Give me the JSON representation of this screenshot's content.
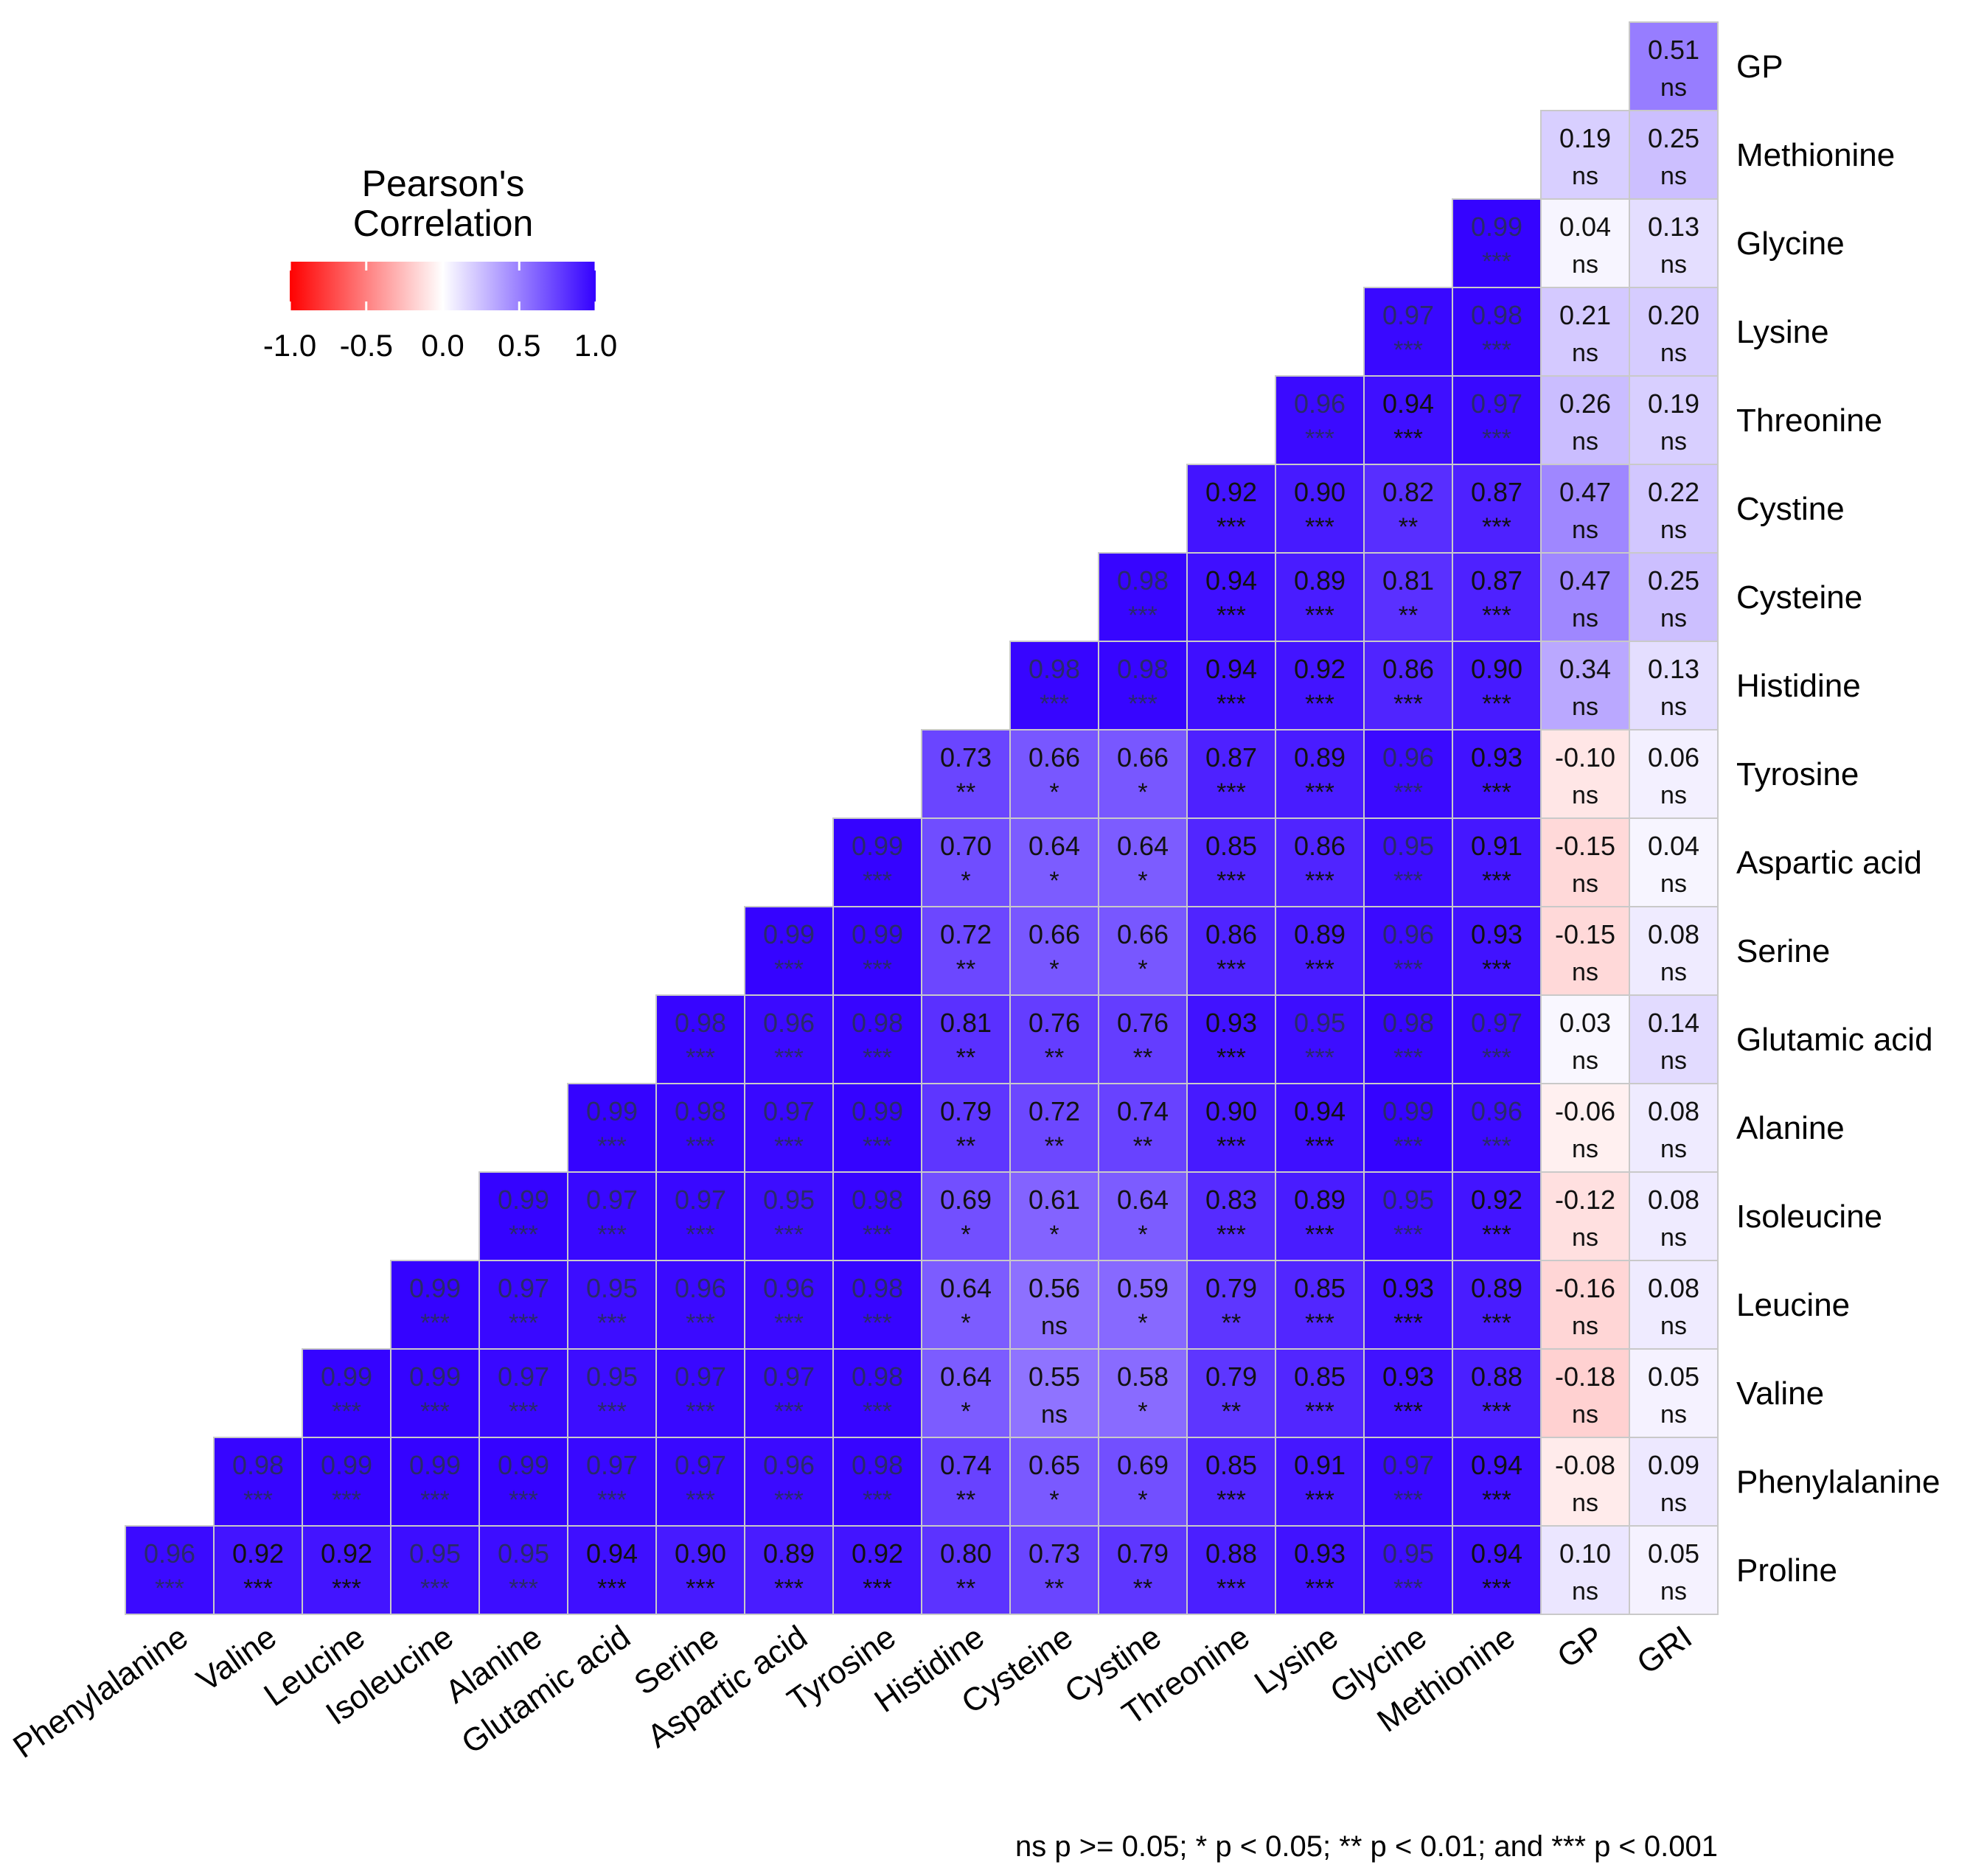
{
  "chart_data": {
    "type": "heatmap",
    "legend": {
      "title_line1": "Pearson's",
      "title_line2": "Correlation",
      "ticks": [
        "-1.0",
        "-0.5",
        "0.0",
        "0.5",
        "1.0"
      ],
      "low_color": "#ff0000",
      "mid_color": "#ffffff",
      "high_color": "#3300ff",
      "placement": "top-left"
    },
    "footnote": "ns p >= 0.05; * p < 0.05; ** p < 0.01; and *** p < 0.001",
    "x_labels": [
      "Phenylalanine",
      "Valine",
      "Leucine",
      "Isoleucine",
      "Alanine",
      "Glutamic acid",
      "Serine",
      "Aspartic acid",
      "Tyrosine",
      "Histidine",
      "Cysteine",
      "Cystine",
      "Threonine",
      "Lysine",
      "Glycine",
      "Methionine",
      "GP",
      "GRI"
    ],
    "y_labels": [
      "GP",
      "Methionine",
      "Glycine",
      "Lysine",
      "Threonine",
      "Cystine",
      "Cysteine",
      "Histidine",
      "Tyrosine",
      "Aspartic acid",
      "Serine",
      "Glutamic acid",
      "Alanine",
      "Isoleucine",
      "Leucine",
      "Valine",
      "Phenylalanine",
      "Proline"
    ],
    "rows": [
      {
        "label": "GP",
        "cells": [
          {
            "x": "GRI",
            "v": "0.51",
            "s": "ns"
          }
        ]
      },
      {
        "label": "Methionine",
        "cells": [
          {
            "x": "GP",
            "v": "0.19",
            "s": "ns"
          },
          {
            "x": "GRI",
            "v": "0.25",
            "s": "ns"
          }
        ]
      },
      {
        "label": "Glycine",
        "cells": [
          {
            "x": "Methionine",
            "v": "0.99",
            "s": "***"
          },
          {
            "x": "GP",
            "v": "0.04",
            "s": "ns"
          },
          {
            "x": "GRI",
            "v": "0.13",
            "s": "ns"
          }
        ]
      },
      {
        "label": "Lysine",
        "cells": [
          {
            "x": "Glycine",
            "v": "0.97",
            "s": "***"
          },
          {
            "x": "Methionine",
            "v": "0.98",
            "s": "***"
          },
          {
            "x": "GP",
            "v": "0.21",
            "s": "ns"
          },
          {
            "x": "GRI",
            "v": "0.20",
            "s": "ns"
          }
        ]
      },
      {
        "label": "Threonine",
        "cells": [
          {
            "x": "Lysine",
            "v": "0.96",
            "s": "***"
          },
          {
            "x": "Glycine",
            "v": "0.94",
            "s": "***"
          },
          {
            "x": "Methionine",
            "v": "0.97",
            "s": "***"
          },
          {
            "x": "GP",
            "v": "0.26",
            "s": "ns"
          },
          {
            "x": "GRI",
            "v": "0.19",
            "s": "ns"
          }
        ]
      },
      {
        "label": "Cystine",
        "cells": [
          {
            "x": "Threonine",
            "v": "0.92",
            "s": "***"
          },
          {
            "x": "Lysine",
            "v": "0.90",
            "s": "***"
          },
          {
            "x": "Glycine",
            "v": "0.82",
            "s": "**"
          },
          {
            "x": "Methionine",
            "v": "0.87",
            "s": "***"
          },
          {
            "x": "GP",
            "v": "0.47",
            "s": "ns"
          },
          {
            "x": "GRI",
            "v": "0.22",
            "s": "ns"
          }
        ]
      },
      {
        "label": "Cysteine",
        "cells": [
          {
            "x": "Cystine",
            "v": "0.98",
            "s": "***"
          },
          {
            "x": "Threonine",
            "v": "0.94",
            "s": "***"
          },
          {
            "x": "Lysine",
            "v": "0.89",
            "s": "***"
          },
          {
            "x": "Glycine",
            "v": "0.81",
            "s": "**"
          },
          {
            "x": "Methionine",
            "v": "0.87",
            "s": "***"
          },
          {
            "x": "GP",
            "v": "0.47",
            "s": "ns"
          },
          {
            "x": "GRI",
            "v": "0.25",
            "s": "ns"
          }
        ]
      },
      {
        "label": "Histidine",
        "cells": [
          {
            "x": "Cysteine",
            "v": "0.98",
            "s": "***"
          },
          {
            "x": "Cystine",
            "v": "0.98",
            "s": "***"
          },
          {
            "x": "Threonine",
            "v": "0.94",
            "s": "***"
          },
          {
            "x": "Lysine",
            "v": "0.92",
            "s": "***"
          },
          {
            "x": "Glycine",
            "v": "0.86",
            "s": "***"
          },
          {
            "x": "Methionine",
            "v": "0.90",
            "s": "***"
          },
          {
            "x": "GP",
            "v": "0.34",
            "s": "ns"
          },
          {
            "x": "GRI",
            "v": "0.13",
            "s": "ns"
          }
        ]
      },
      {
        "label": "Tyrosine",
        "cells": [
          {
            "x": "Histidine",
            "v": "0.73",
            "s": "**"
          },
          {
            "x": "Cysteine",
            "v": "0.66",
            "s": "*"
          },
          {
            "x": "Cystine",
            "v": "0.66",
            "s": "*"
          },
          {
            "x": "Threonine",
            "v": "0.87",
            "s": "***"
          },
          {
            "x": "Lysine",
            "v": "0.89",
            "s": "***"
          },
          {
            "x": "Glycine",
            "v": "0.96",
            "s": "***"
          },
          {
            "x": "Methionine",
            "v": "0.93",
            "s": "***"
          },
          {
            "x": "GP",
            "v": "-0.10",
            "s": "ns"
          },
          {
            "x": "GRI",
            "v": "0.06",
            "s": "ns"
          }
        ]
      },
      {
        "label": "Aspartic acid",
        "cells": [
          {
            "x": "Tyrosine",
            "v": "0.99",
            "s": "***"
          },
          {
            "x": "Histidine",
            "v": "0.70",
            "s": "*"
          },
          {
            "x": "Cysteine",
            "v": "0.64",
            "s": "*"
          },
          {
            "x": "Cystine",
            "v": "0.64",
            "s": "*"
          },
          {
            "x": "Threonine",
            "v": "0.85",
            "s": "***"
          },
          {
            "x": "Lysine",
            "v": "0.86",
            "s": "***"
          },
          {
            "x": "Glycine",
            "v": "0.95",
            "s": "***"
          },
          {
            "x": "Methionine",
            "v": "0.91",
            "s": "***"
          },
          {
            "x": "GP",
            "v": "-0.15",
            "s": "ns"
          },
          {
            "x": "GRI",
            "v": "0.04",
            "s": "ns"
          }
        ]
      },
      {
        "label": "Serine",
        "cells": [
          {
            "x": "Aspartic acid",
            "v": "0.99",
            "s": "***"
          },
          {
            "x": "Tyrosine",
            "v": "0.99",
            "s": "***"
          },
          {
            "x": "Histidine",
            "v": "0.72",
            "s": "**"
          },
          {
            "x": "Cysteine",
            "v": "0.66",
            "s": "*"
          },
          {
            "x": "Cystine",
            "v": "0.66",
            "s": "*"
          },
          {
            "x": "Threonine",
            "v": "0.86",
            "s": "***"
          },
          {
            "x": "Lysine",
            "v": "0.89",
            "s": "***"
          },
          {
            "x": "Glycine",
            "v": "0.96",
            "s": "***"
          },
          {
            "x": "Methionine",
            "v": "0.93",
            "s": "***"
          },
          {
            "x": "GP",
            "v": "-0.15",
            "s": "ns"
          },
          {
            "x": "GRI",
            "v": "0.08",
            "s": "ns"
          }
        ]
      },
      {
        "label": "Glutamic acid",
        "cells": [
          {
            "x": "Serine",
            "v": "0.98",
            "s": "***"
          },
          {
            "x": "Aspartic acid",
            "v": "0.96",
            "s": "***"
          },
          {
            "x": "Tyrosine",
            "v": "0.98",
            "s": "***"
          },
          {
            "x": "Histidine",
            "v": "0.81",
            "s": "**"
          },
          {
            "x": "Cysteine",
            "v": "0.76",
            "s": "**"
          },
          {
            "x": "Cystine",
            "v": "0.76",
            "s": "**"
          },
          {
            "x": "Threonine",
            "v": "0.93",
            "s": "***"
          },
          {
            "x": "Lysine",
            "v": "0.95",
            "s": "***"
          },
          {
            "x": "Glycine",
            "v": "0.98",
            "s": "***"
          },
          {
            "x": "Methionine",
            "v": "0.97",
            "s": "***"
          },
          {
            "x": "GP",
            "v": "0.03",
            "s": "ns"
          },
          {
            "x": "GRI",
            "v": "0.14",
            "s": "ns"
          }
        ]
      },
      {
        "label": "Alanine",
        "cells": [
          {
            "x": "Glutamic acid",
            "v": "0.99",
            "s": "***"
          },
          {
            "x": "Serine",
            "v": "0.98",
            "s": "***"
          },
          {
            "x": "Aspartic acid",
            "v": "0.97",
            "s": "***"
          },
          {
            "x": "Tyrosine",
            "v": "0.99",
            "s": "***"
          },
          {
            "x": "Histidine",
            "v": "0.79",
            "s": "**"
          },
          {
            "x": "Cysteine",
            "v": "0.72",
            "s": "**"
          },
          {
            "x": "Cystine",
            "v": "0.74",
            "s": "**"
          },
          {
            "x": "Threonine",
            "v": "0.90",
            "s": "***"
          },
          {
            "x": "Lysine",
            "v": "0.94",
            "s": "***"
          },
          {
            "x": "Glycine",
            "v": "0.99",
            "s": "***"
          },
          {
            "x": "Methionine",
            "v": "0.96",
            "s": "***"
          },
          {
            "x": "GP",
            "v": "-0.06",
            "s": "ns"
          },
          {
            "x": "GRI",
            "v": "0.08",
            "s": "ns"
          }
        ]
      },
      {
        "label": "Isoleucine",
        "cells": [
          {
            "x": "Alanine",
            "v": "0.99",
            "s": "***"
          },
          {
            "x": "Glutamic acid",
            "v": "0.97",
            "s": "***"
          },
          {
            "x": "Serine",
            "v": "0.97",
            "s": "***"
          },
          {
            "x": "Aspartic acid",
            "v": "0.95",
            "s": "***"
          },
          {
            "x": "Tyrosine",
            "v": "0.98",
            "s": "***"
          },
          {
            "x": "Histidine",
            "v": "0.69",
            "s": "*"
          },
          {
            "x": "Cysteine",
            "v": "0.61",
            "s": "*"
          },
          {
            "x": "Cystine",
            "v": "0.64",
            "s": "*"
          },
          {
            "x": "Threonine",
            "v": "0.83",
            "s": "***"
          },
          {
            "x": "Lysine",
            "v": "0.89",
            "s": "***"
          },
          {
            "x": "Glycine",
            "v": "0.95",
            "s": "***"
          },
          {
            "x": "Methionine",
            "v": "0.92",
            "s": "***"
          },
          {
            "x": "GP",
            "v": "-0.12",
            "s": "ns"
          },
          {
            "x": "GRI",
            "v": "0.08",
            "s": "ns"
          }
        ]
      },
      {
        "label": "Leucine",
        "cells": [
          {
            "x": "Isoleucine",
            "v": "0.99",
            "s": "***"
          },
          {
            "x": "Alanine",
            "v": "0.97",
            "s": "***"
          },
          {
            "x": "Glutamic acid",
            "v": "0.95",
            "s": "***"
          },
          {
            "x": "Serine",
            "v": "0.96",
            "s": "***"
          },
          {
            "x": "Aspartic acid",
            "v": "0.96",
            "s": "***"
          },
          {
            "x": "Tyrosine",
            "v": "0.98",
            "s": "***"
          },
          {
            "x": "Histidine",
            "v": "0.64",
            "s": "*"
          },
          {
            "x": "Cysteine",
            "v": "0.56",
            "s": "ns"
          },
          {
            "x": "Cystine",
            "v": "0.59",
            "s": "*"
          },
          {
            "x": "Threonine",
            "v": "0.79",
            "s": "**"
          },
          {
            "x": "Lysine",
            "v": "0.85",
            "s": "***"
          },
          {
            "x": "Glycine",
            "v": "0.93",
            "s": "***"
          },
          {
            "x": "Methionine",
            "v": "0.89",
            "s": "***"
          },
          {
            "x": "GP",
            "v": "-0.16",
            "s": "ns"
          },
          {
            "x": "GRI",
            "v": "0.08",
            "s": "ns"
          }
        ]
      },
      {
        "label": "Valine",
        "cells": [
          {
            "x": "Leucine",
            "v": "0.99",
            "s": "***"
          },
          {
            "x": "Isoleucine",
            "v": "0.99",
            "s": "***"
          },
          {
            "x": "Alanine",
            "v": "0.97",
            "s": "***"
          },
          {
            "x": "Glutamic acid",
            "v": "0.95",
            "s": "***"
          },
          {
            "x": "Serine",
            "v": "0.97",
            "s": "***"
          },
          {
            "x": "Aspartic acid",
            "v": "0.97",
            "s": "***"
          },
          {
            "x": "Tyrosine",
            "v": "0.98",
            "s": "***"
          },
          {
            "x": "Histidine",
            "v": "0.64",
            "s": "*"
          },
          {
            "x": "Cysteine",
            "v": "0.55",
            "s": "ns"
          },
          {
            "x": "Cystine",
            "v": "0.58",
            "s": "*"
          },
          {
            "x": "Threonine",
            "v": "0.79",
            "s": "**"
          },
          {
            "x": "Lysine",
            "v": "0.85",
            "s": "***"
          },
          {
            "x": "Glycine",
            "v": "0.93",
            "s": "***"
          },
          {
            "x": "Methionine",
            "v": "0.88",
            "s": "***"
          },
          {
            "x": "GP",
            "v": "-0.18",
            "s": "ns"
          },
          {
            "x": "GRI",
            "v": "0.05",
            "s": "ns"
          }
        ]
      },
      {
        "label": "Phenylalanine",
        "cells": [
          {
            "x": "Valine",
            "v": "0.98",
            "s": "***"
          },
          {
            "x": "Leucine",
            "v": "0.99",
            "s": "***"
          },
          {
            "x": "Isoleucine",
            "v": "0.99",
            "s": "***"
          },
          {
            "x": "Alanine",
            "v": "0.99",
            "s": "***"
          },
          {
            "x": "Glutamic acid",
            "v": "0.97",
            "s": "***"
          },
          {
            "x": "Serine",
            "v": "0.97",
            "s": "***"
          },
          {
            "x": "Aspartic acid",
            "v": "0.96",
            "s": "***"
          },
          {
            "x": "Tyrosine",
            "v": "0.98",
            "s": "***"
          },
          {
            "x": "Histidine",
            "v": "0.74",
            "s": "**"
          },
          {
            "x": "Cysteine",
            "v": "0.65",
            "s": "*"
          },
          {
            "x": "Cystine",
            "v": "0.69",
            "s": "*"
          },
          {
            "x": "Threonine",
            "v": "0.85",
            "s": "***"
          },
          {
            "x": "Lysine",
            "v": "0.91",
            "s": "***"
          },
          {
            "x": "Glycine",
            "v": "0.97",
            "s": "***"
          },
          {
            "x": "Methionine",
            "v": "0.94",
            "s": "***"
          },
          {
            "x": "GP",
            "v": "-0.08",
            "s": "ns"
          },
          {
            "x": "GRI",
            "v": "0.09",
            "s": "ns"
          }
        ]
      },
      {
        "label": "Proline",
        "cells": [
          {
            "x": "Phenylalanine",
            "v": "0.96",
            "s": "***"
          },
          {
            "x": "Valine",
            "v": "0.92",
            "s": "***"
          },
          {
            "x": "Leucine",
            "v": "0.92",
            "s": "***"
          },
          {
            "x": "Isoleucine",
            "v": "0.95",
            "s": "***"
          },
          {
            "x": "Alanine",
            "v": "0.95",
            "s": "***"
          },
          {
            "x": "Glutamic acid",
            "v": "0.94",
            "s": "***"
          },
          {
            "x": "Serine",
            "v": "0.90",
            "s": "***"
          },
          {
            "x": "Aspartic acid",
            "v": "0.89",
            "s": "***"
          },
          {
            "x": "Tyrosine",
            "v": "0.92",
            "s": "***"
          },
          {
            "x": "Histidine",
            "v": "0.80",
            "s": "**"
          },
          {
            "x": "Cysteine",
            "v": "0.73",
            "s": "**"
          },
          {
            "x": "Cystine",
            "v": "0.79",
            "s": "**"
          },
          {
            "x": "Threonine",
            "v": "0.88",
            "s": "***"
          },
          {
            "x": "Lysine",
            "v": "0.93",
            "s": "***"
          },
          {
            "x": "Glycine",
            "v": "0.95",
            "s": "***"
          },
          {
            "x": "Methionine",
            "v": "0.94",
            "s": "***"
          },
          {
            "x": "GP",
            "v": "0.10",
            "s": "ns"
          },
          {
            "x": "GRI",
            "v": "0.05",
            "s": "ns"
          }
        ]
      }
    ]
  }
}
